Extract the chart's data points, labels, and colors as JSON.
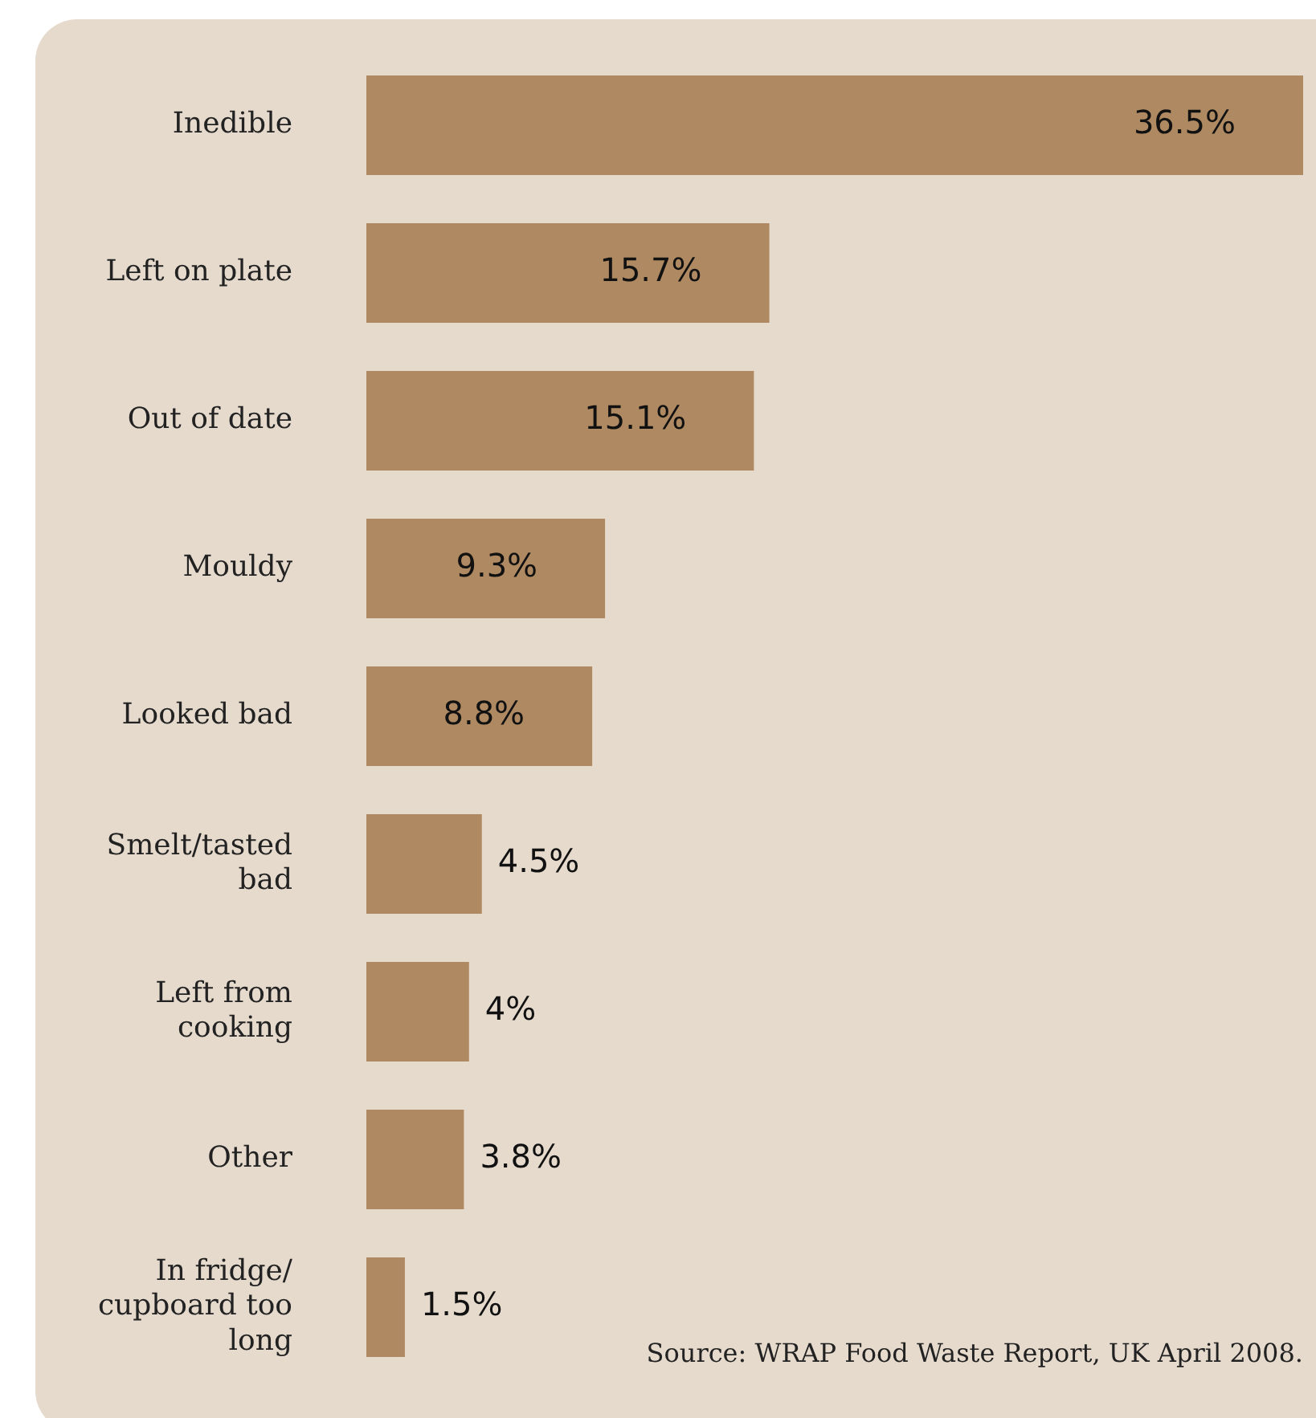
{
  "chart_data": {
    "type": "bar",
    "orientation": "horizontal",
    "categories": [
      "Inedible",
      "Left on plate",
      "Out of date",
      "Mouldy",
      "Looked bad",
      "Smelt/tasted bad",
      "Left from cooking",
      "Other",
      "In fridge/cupboard too long"
    ],
    "values": [
      36.5,
      15.7,
      15.1,
      9.3,
      8.8,
      4.5,
      4,
      3.8,
      1.5
    ],
    "value_labels": [
      "36.5%",
      "15.7%",
      "15.1%",
      "9.3%",
      "8.8%",
      "4.5%",
      "4%",
      "3.8%",
      "1.5%"
    ],
    "color": "#ae8961",
    "legend": false,
    "annotations": [
      "Source: WRAP Food Waste Report, UK April 2008."
    ]
  }
}
